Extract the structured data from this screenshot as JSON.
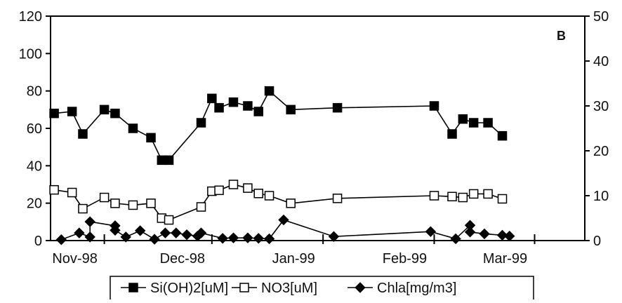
{
  "chart_data": {
    "type": "line",
    "panel_label": "B",
    "x_axis": {
      "type": "date",
      "tick_labels": [
        "Nov-98",
        "Dec-98",
        "Jan-99",
        "Feb-99",
        "Mar-99"
      ],
      "tick_dates": [
        "1998-11-01",
        "1998-12-01",
        "1999-01-01",
        "1999-02-01",
        "1999-03-01"
      ],
      "range": [
        "1998-10-17",
        "1999-03-15"
      ]
    },
    "y_left": {
      "ticks": [
        0,
        20,
        40,
        60,
        80,
        100,
        120
      ],
      "range": [
        0,
        120
      ]
    },
    "y_right": {
      "ticks": [
        0,
        10,
        20,
        30,
        40,
        50
      ],
      "range": [
        0,
        50
      ]
    },
    "grid": false,
    "legend_position": "bottom",
    "series": [
      {
        "name": "Si(OH)2[uM]",
        "axis": "left",
        "marker": "square-filled",
        "color": "#000000",
        "points": [
          {
            "x": "1998-10-18",
            "y": 68
          },
          {
            "x": "1998-10-23",
            "y": 69
          },
          {
            "x": "1998-10-26",
            "y": 57
          },
          {
            "x": "1998-11-01",
            "y": 70
          },
          {
            "x": "1998-11-04",
            "y": 68
          },
          {
            "x": "1998-11-09",
            "y": 60
          },
          {
            "x": "1998-11-14",
            "y": 55
          },
          {
            "x": "1998-11-17",
            "y": 43
          },
          {
            "x": "1998-11-19",
            "y": 43
          },
          {
            "x": "1998-11-28",
            "y": 63
          },
          {
            "x": "1998-12-01",
            "y": 76
          },
          {
            "x": "1998-12-03",
            "y": 71
          },
          {
            "x": "1998-12-07",
            "y": 74
          },
          {
            "x": "1998-12-11",
            "y": 72
          },
          {
            "x": "1998-12-14",
            "y": 69
          },
          {
            "x": "1998-12-17",
            "y": 80
          },
          {
            "x": "1998-12-23",
            "y": 70
          },
          {
            "x": "1999-01-05",
            "y": 71
          },
          {
            "x": "1999-02-01",
            "y": 72
          },
          {
            "x": "1999-02-06",
            "y": 57
          },
          {
            "x": "1999-02-09",
            "y": 65
          },
          {
            "x": "1999-02-12",
            "y": 63
          },
          {
            "x": "1999-02-16",
            "y": 63
          },
          {
            "x": "1999-02-20",
            "y": 56
          }
        ]
      },
      {
        "name": "NO3[uM]",
        "axis": "right",
        "marker": "square-open",
        "color": "#000000",
        "points": [
          {
            "x": "1998-10-18",
            "y": 11.3
          },
          {
            "x": "1998-10-23",
            "y": 10.7
          },
          {
            "x": "1998-10-26",
            "y": 7.1
          },
          {
            "x": "1998-11-01",
            "y": 9.6
          },
          {
            "x": "1998-11-04",
            "y": 8.3
          },
          {
            "x": "1998-11-09",
            "y": 7.9
          },
          {
            "x": "1998-11-14",
            "y": 8.3
          },
          {
            "x": "1998-11-17",
            "y": 5.0
          },
          {
            "x": "1998-11-19",
            "y": 4.6
          },
          {
            "x": "1998-11-28",
            "y": 7.5
          },
          {
            "x": "1998-12-01",
            "y": 11.0
          },
          {
            "x": "1998-12-03",
            "y": 11.2
          },
          {
            "x": "1998-12-07",
            "y": 12.5
          },
          {
            "x": "1998-12-11",
            "y": 11.7
          },
          {
            "x": "1998-12-14",
            "y": 10.5
          },
          {
            "x": "1998-12-17",
            "y": 10.0
          },
          {
            "x": "1998-12-23",
            "y": 8.3
          },
          {
            "x": "1999-01-05",
            "y": 9.4
          },
          {
            "x": "1999-02-01",
            "y": 10.0
          },
          {
            "x": "1999-02-06",
            "y": 9.8
          },
          {
            "x": "1999-02-09",
            "y": 9.6
          },
          {
            "x": "1999-02-12",
            "y": 10.4
          },
          {
            "x": "1999-02-16",
            "y": 10.4
          },
          {
            "x": "1999-02-20",
            "y": 9.3
          }
        ]
      },
      {
        "name": "Chla[mg/m3]",
        "axis": "right",
        "marker": "diamond-filled",
        "color": "#000000",
        "points": [
          {
            "x": "1998-10-20",
            "y": 0.2
          },
          {
            "x": "1998-10-25",
            "y": 1.7
          },
          {
            "x": "1998-10-28",
            "y": 0.8
          },
          {
            "x": "1998-10-28",
            "y": 4.2
          },
          {
            "x": "1998-11-04",
            "y": 3.3
          },
          {
            "x": "1998-11-04",
            "y": 2.3
          },
          {
            "x": "1998-11-07",
            "y": 0.8
          },
          {
            "x": "1998-11-11",
            "y": 2.2
          },
          {
            "x": "1998-11-15",
            "y": 0.3
          },
          {
            "x": "1998-11-18",
            "y": 1.7
          },
          {
            "x": "1998-11-21",
            "y": 1.7
          },
          {
            "x": "1998-11-24",
            "y": 1.3
          },
          {
            "x": "1998-11-27",
            "y": 1.0
          },
          {
            "x": "1998-11-28",
            "y": 1.7
          },
          {
            "x": "1998-12-04",
            "y": 0.5
          },
          {
            "x": "1998-12-07",
            "y": 0.6
          },
          {
            "x": "1998-12-11",
            "y": 0.6
          },
          {
            "x": "1998-12-14",
            "y": 0.5
          },
          {
            "x": "1998-12-17",
            "y": 0.4
          },
          {
            "x": "1998-12-21",
            "y": 4.6
          },
          {
            "x": "1999-01-04",
            "y": 0.9
          },
          {
            "x": "1999-01-31",
            "y": 2.0
          },
          {
            "x": "1999-02-07",
            "y": 0.4
          },
          {
            "x": "1999-02-11",
            "y": 3.4
          },
          {
            "x": "1999-02-11",
            "y": 1.9
          },
          {
            "x": "1999-02-15",
            "y": 1.5
          },
          {
            "x": "1999-02-20",
            "y": 1.2
          },
          {
            "x": "1999-02-22",
            "y": 1.0
          }
        ]
      }
    ]
  }
}
